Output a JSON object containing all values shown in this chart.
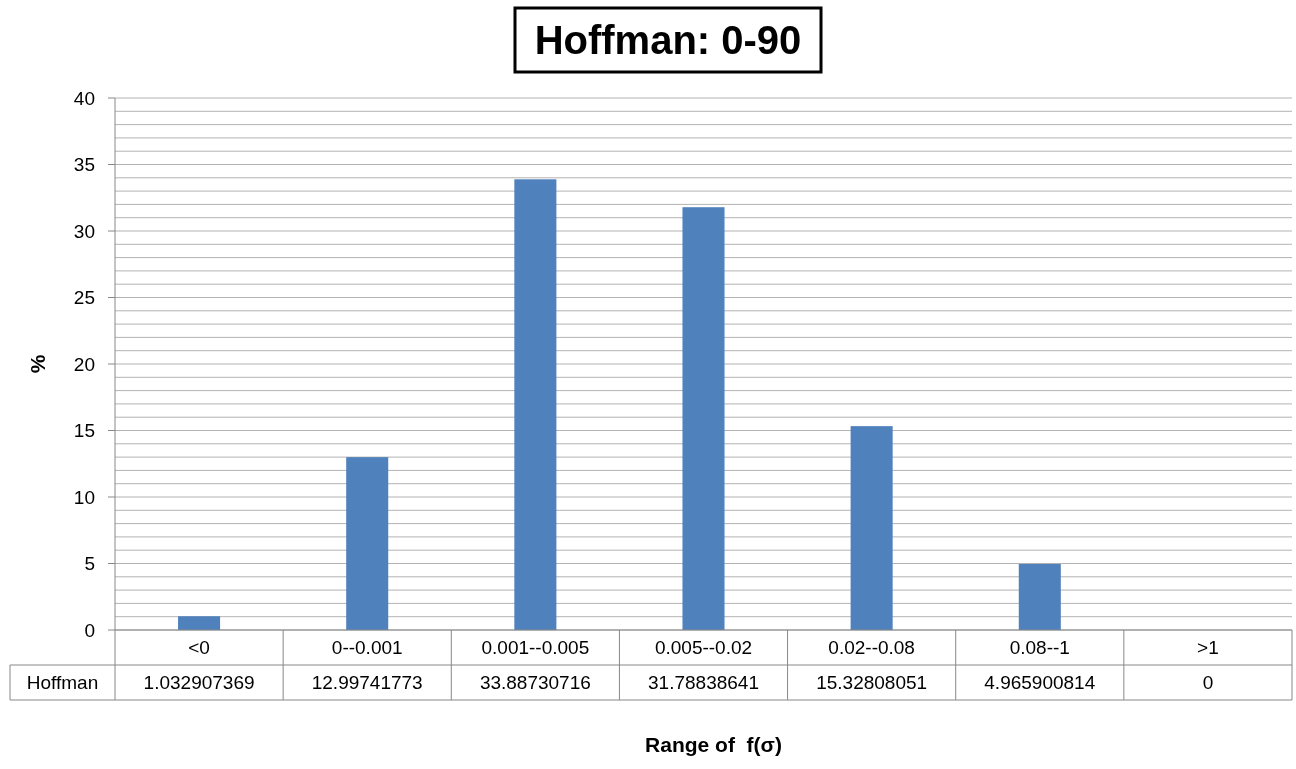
{
  "chart_data": {
    "type": "bar",
    "title": "Hoffman: 0-90",
    "xlabel": "Range of  f(σ)",
    "ylabel": "%",
    "categories": [
      "<0",
      "0--0.001",
      "0.001--0.005",
      "0.005--0.02",
      "0.02--0.08",
      "0.08--1",
      ">1"
    ],
    "series": [
      {
        "name": "Hoffman",
        "color": "#4f81bd",
        "values": [
          1.032907369,
          12.99741773,
          33.88730716,
          31.78838641,
          15.32808051,
          4.965900814,
          0
        ]
      }
    ],
    "ylim": [
      0,
      40
    ],
    "yticks": [
      0,
      {
        "value": 1,
        "label": null
      },
      {
        "value": 2,
        "label": null
      },
      {
        "value": 3,
        "label": null
      },
      {
        "value": 4,
        "label": null
      },
      5,
      {
        "value": 6,
        "label": null
      },
      {
        "value": 7,
        "label": null
      },
      {
        "value": 8,
        "label": null
      },
      {
        "value": 9,
        "label": null
      },
      10,
      {
        "value": 11,
        "label": null
      },
      {
        "value": 12,
        "label": null
      },
      {
        "value": 13,
        "label": null
      },
      {
        "value": 14,
        "label": null
      },
      15,
      {
        "value": 16,
        "label": null
      },
      {
        "value": 17,
        "label": null
      },
      {
        "value": 18,
        "label": null
      },
      {
        "value": 19,
        "label": null
      },
      20,
      {
        "value": 21,
        "label": null
      },
      {
        "value": 22,
        "label": null
      },
      {
        "value": 23,
        "label": null
      },
      {
        "value": 24,
        "label": null
      },
      25,
      {
        "value": 26,
        "label": null
      },
      {
        "value": 27,
        "label": null
      },
      {
        "value": 28,
        "label": null
      },
      {
        "value": 29,
        "label": null
      },
      30,
      {
        "value": 31,
        "label": null
      },
      {
        "value": 32,
        "label": null
      },
      {
        "value": 33,
        "label": null
      },
      {
        "value": 34,
        "label": null
      },
      35,
      {
        "value": 36,
        "label": null
      },
      {
        "value": 37,
        "label": null
      },
      {
        "value": 38,
        "label": null
      },
      {
        "value": 39,
        "label": null
      },
      40
    ],
    "grid": "y",
    "data_labels": true
  }
}
